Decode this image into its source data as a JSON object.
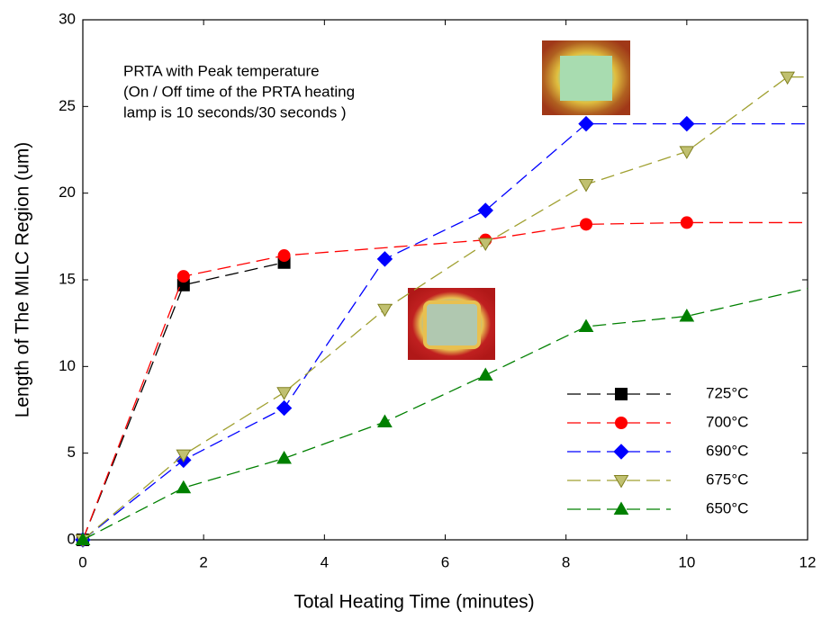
{
  "chart_data": {
    "type": "line",
    "xlabel": "Total Heating Time (minutes)",
    "ylabel": "Length of The MILC Region (um)",
    "annotation": [
      "PRTA with Peak temperature",
      "(On / Off time of the PRTA heating",
      "lamp is 10 seconds/30 seconds )"
    ],
    "xlim": [
      0,
      12
    ],
    "ylim": [
      0,
      30
    ],
    "xticks": [
      0,
      2,
      4,
      6,
      8,
      10,
      12
    ],
    "yticks": [
      0,
      5,
      10,
      15,
      20,
      25,
      30
    ],
    "series": [
      {
        "name": "725°C",
        "color": "#000000",
        "marker": "square",
        "x": [
          0,
          1.667,
          3.333
        ],
        "values": [
          0,
          14.7,
          16.0
        ]
      },
      {
        "name": "700°C",
        "color": "#ff0000",
        "marker": "circle",
        "x": [
          0,
          1.667,
          3.333,
          6.667,
          8.333,
          10,
          12
        ],
        "values": [
          0,
          15.2,
          16.4,
          17.3,
          18.2,
          18.3,
          18.3
        ]
      },
      {
        "name": "690°C",
        "color": "#0000ff",
        "marker": "diamond",
        "x": [
          0,
          1.667,
          3.333,
          5,
          6.667,
          8.333,
          10,
          12
        ],
        "values": [
          0,
          4.6,
          7.6,
          16.2,
          19.0,
          24.0,
          24.0,
          24.0
        ]
      },
      {
        "name": "675°C",
        "color": "#a0a030",
        "marker": "triangle-down",
        "x": [
          0,
          1.667,
          3.333,
          5,
          6.667,
          8.333,
          10,
          11.667,
          12
        ],
        "values": [
          0,
          4.9,
          8.5,
          13.3,
          17.1,
          20.5,
          22.4,
          26.7,
          26.7
        ]
      },
      {
        "name": "650°C",
        "color": "#008000",
        "marker": "triangle-up",
        "x": [
          0,
          1.667,
          3.333,
          5,
          6.667,
          8.333,
          10,
          12
        ],
        "values": [
          0,
          3.0,
          4.7,
          6.8,
          9.5,
          12.3,
          12.9,
          14.5
        ]
      }
    ]
  }
}
